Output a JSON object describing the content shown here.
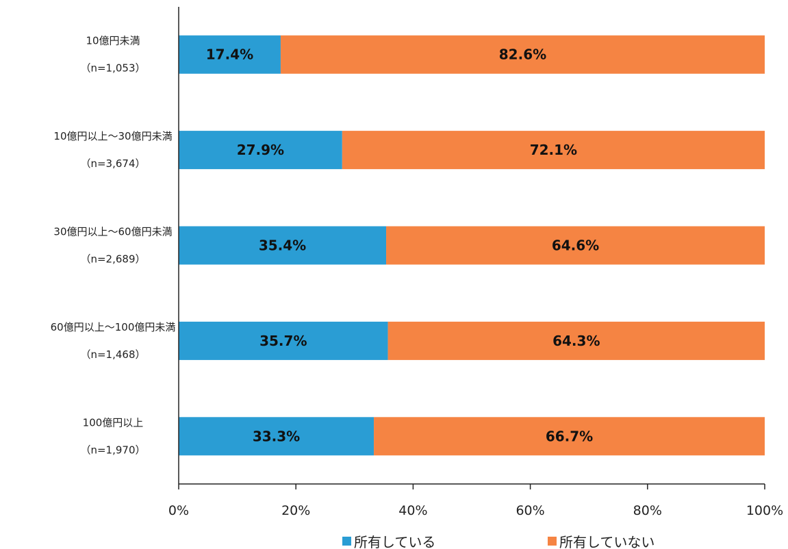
{
  "chart_data": {
    "type": "bar",
    "orientation": "horizontal",
    "stacked": "percent",
    "categories": [
      {
        "label": "10億円未満",
        "n": "（n=1,053）"
      },
      {
        "label": "10億円以上～30億円未満",
        "n": "（n=3,674）"
      },
      {
        "label": "30億円以上～60億円未満",
        "n": "（n=2,689）"
      },
      {
        "label": "60億円以上～100億円未満",
        "n": "（n=1,468）"
      },
      {
        "label": "100億円以上",
        "n": "（n=1,970）"
      }
    ],
    "series": [
      {
        "name": "所有している",
        "color": "#2A9DD4",
        "values": [
          17.4,
          27.9,
          35.4,
          35.7,
          33.3
        ],
        "labels": [
          "17.4%",
          "27.9%",
          "35.4%",
          "35.7%",
          "33.3%"
        ]
      },
      {
        "name": "所有していない",
        "color": "#F58443",
        "values": [
          82.6,
          72.1,
          64.6,
          64.3,
          66.7
        ],
        "labels": [
          "82.6%",
          "72.1%",
          "64.6%",
          "64.3%",
          "66.7%"
        ]
      }
    ],
    "xlim": [
      0,
      100
    ],
    "xticks": [
      "0%",
      "20%",
      "40%",
      "60%",
      "80%",
      "100%"
    ],
    "grid": false,
    "legend": "bottom"
  }
}
